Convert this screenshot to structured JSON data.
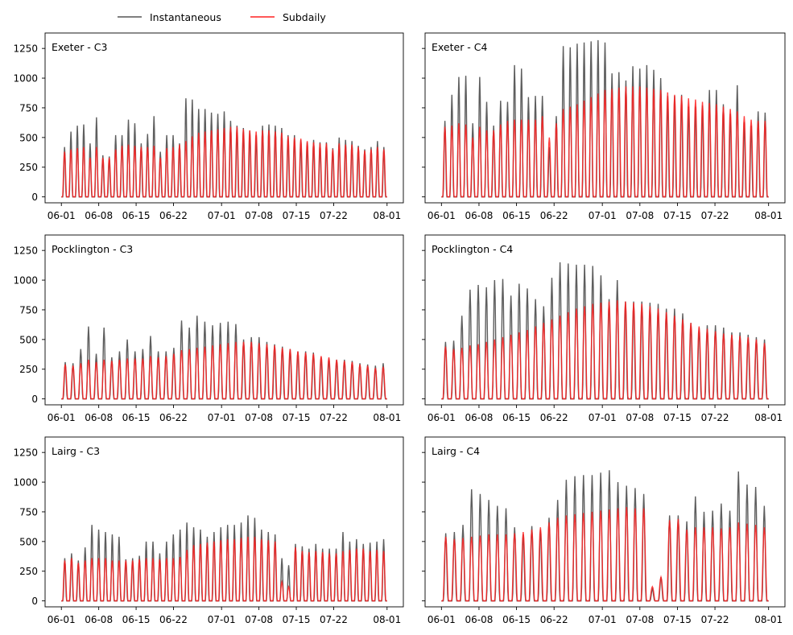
{
  "legend": {
    "placement": "top-left",
    "entries": [
      {
        "label": "Instantaneous",
        "color": "#555555"
      },
      {
        "label": "Subdaily",
        "color": "#ff2020"
      }
    ]
  },
  "chart_data": {
    "type": "line",
    "layout": "3x2 grid, shared y axis per row",
    "x_range": [
      "2024-06-01",
      "2024-08-01"
    ],
    "x_ticks": [
      "06-01",
      "06-08",
      "06-15",
      "06-22",
      "07-01",
      "07-08",
      "07-15",
      "07-22",
      "08-01"
    ],
    "y_range": [
      -50,
      1380
    ],
    "y_ticks": [
      0,
      250,
      500,
      750,
      1000,
      1250
    ],
    "grid": false,
    "series_description": "Each panel has two series: daily peak values for Instantaneous and Subdaily, approximated from the plot; both curves return to 0 every night.",
    "panels": [
      {
        "title": "Exeter - C3",
        "instantaneous_daily_peaks": [
          420,
          550,
          600,
          610,
          450,
          670,
          350,
          340,
          520,
          520,
          650,
          620,
          450,
          530,
          680,
          380,
          520,
          520,
          450,
          830,
          820,
          740,
          740,
          710,
          700,
          720,
          640,
          600,
          580,
          560,
          520,
          600,
          610,
          600,
          580,
          520,
          520,
          480,
          460,
          480,
          460,
          460,
          410,
          500,
          480,
          470,
          430,
          400,
          420,
          470,
          420
        ],
        "subdaily_daily_peaks": [
          380,
          400,
          410,
          420,
          330,
          420,
          330,
          330,
          400,
          430,
          440,
          430,
          420,
          420,
          430,
          330,
          410,
          420,
          440,
          470,
          510,
          540,
          550,
          560,
          570,
          580,
          590,
          590,
          570,
          560,
          550,
          560,
          560,
          550,
          540,
          510,
          500,
          490,
          470,
          460,
          450,
          450,
          400,
          450,
          440,
          440,
          420,
          390,
          400,
          420,
          400
        ]
      },
      {
        "title": "Exeter - C4",
        "instantaneous_daily_peaks": [
          640,
          860,
          1010,
          1020,
          620,
          1010,
          800,
          600,
          810,
          800,
          1110,
          1080,
          840,
          850,
          850,
          420,
          680,
          1270,
          1260,
          1290,
          1300,
          1310,
          1320,
          1300,
          1040,
          1050,
          980,
          1100,
          1080,
          1110,
          1070,
          1000,
          850,
          850,
          860,
          760,
          760,
          770,
          900,
          900,
          780,
          700,
          940,
          630,
          600,
          720,
          710
        ],
        "subdaily_daily_peaks": [
          590,
          600,
          620,
          610,
          500,
          590,
          560,
          560,
          610,
          640,
          650,
          650,
          650,
          650,
          680,
          500,
          620,
          740,
          760,
          780,
          810,
          840,
          870,
          900,
          910,
          920,
          930,
          930,
          930,
          920,
          910,
          900,
          880,
          860,
          850,
          830,
          820,
          800,
          790,
          780,
          760,
          740,
          720,
          680,
          650,
          640,
          640
        ]
      },
      {
        "title": "Pocklington - C3",
        "instantaneous_daily_peaks": [
          310,
          300,
          420,
          610,
          380,
          600,
          350,
          400,
          500,
          400,
          420,
          530,
          400,
          400,
          430,
          660,
          600,
          700,
          650,
          620,
          640,
          650,
          630,
          500,
          520,
          520,
          480,
          460,
          440,
          420,
          400,
          400,
          390,
          350,
          340,
          330,
          330,
          320,
          300,
          290,
          280,
          300
        ],
        "subdaily_daily_peaks": [
          290,
          280,
          300,
          330,
          310,
          330,
          320,
          330,
          340,
          340,
          340,
          360,
          350,
          360,
          380,
          410,
          420,
          430,
          440,
          450,
          460,
          470,
          480,
          480,
          480,
          470,
          460,
          450,
          430,
          420,
          400,
          390,
          380,
          360,
          350,
          330,
          320,
          310,
          290,
          280,
          260,
          270
        ]
      },
      {
        "title": "Pocklington - C4",
        "instantaneous_daily_peaks": [
          480,
          490,
          700,
          920,
          960,
          940,
          1000,
          1010,
          870,
          970,
          930,
          840,
          780,
          1020,
          1150,
          1140,
          1130,
          1130,
          1120,
          1040,
          840,
          1000,
          820,
          820,
          820,
          810,
          800,
          760,
          760,
          720,
          640,
          600,
          620,
          620,
          600,
          560,
          560,
          540,
          520,
          500
        ],
        "subdaily_daily_peaks": [
          440,
          420,
          430,
          450,
          460,
          480,
          500,
          520,
          540,
          560,
          580,
          610,
          640,
          670,
          700,
          730,
          760,
          780,
          800,
          810,
          820,
          830,
          820,
          810,
          800,
          780,
          760,
          730,
          700,
          670,
          640,
          610,
          590,
          570,
          550,
          540,
          530,
          520,
          500,
          470
        ]
      },
      {
        "title": "Lairg - C3",
        "instantaneous_daily_peaks": [
          360,
          400,
          340,
          450,
          640,
          600,
          580,
          560,
          540,
          350,
          360,
          380,
          500,
          500,
          400,
          500,
          560,
          600,
          660,
          620,
          600,
          540,
          580,
          620,
          640,
          640,
          660,
          720,
          700,
          600,
          580,
          560,
          360,
          300,
          480,
          460,
          440,
          480,
          440,
          440,
          440,
          580,
          500,
          520,
          480,
          490,
          500,
          520
        ],
        "subdaily_daily_peaks": [
          340,
          360,
          320,
          340,
          360,
          360,
          360,
          340,
          340,
          340,
          340,
          350,
          360,
          360,
          350,
          360,
          360,
          370,
          430,
          470,
          480,
          490,
          500,
          510,
          520,
          520,
          530,
          540,
          540,
          520,
          510,
          500,
          160,
          120,
          450,
          420,
          410,
          420,
          410,
          400,
          400,
          420,
          430,
          440,
          440,
          420,
          430,
          420
        ]
      },
      {
        "title": "Lairg - C4",
        "instantaneous_daily_peaks": [
          570,
          580,
          640,
          940,
          900,
          850,
          800,
          780,
          620,
          560,
          630,
          600,
          700,
          850,
          1020,
          1050,
          1060,
          1060,
          1080,
          1100,
          1000,
          970,
          950,
          900,
          100,
          200,
          720,
          720,
          670,
          880,
          750,
          760,
          820,
          760,
          1090,
          980,
          960,
          800
        ],
        "subdaily_daily_peaks": [
          540,
          520,
          530,
          540,
          550,
          560,
          560,
          560,
          570,
          580,
          600,
          620,
          660,
          700,
          720,
          730,
          740,
          750,
          760,
          770,
          780,
          790,
          780,
          780,
          120,
          200,
          680,
          690,
          600,
          620,
          620,
          620,
          610,
          620,
          660,
          650,
          640,
          620
        ]
      }
    ]
  }
}
